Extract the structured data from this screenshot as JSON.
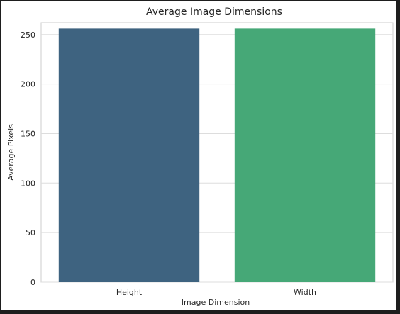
{
  "chart_data": {
    "type": "bar",
    "title": "Average Image Dimensions",
    "xlabel": "Image Dimension",
    "ylabel": "Average Pixels",
    "categories": [
      "Height",
      "Width"
    ],
    "values": [
      256,
      256
    ],
    "colors": [
      "#3e6380",
      "#46a877"
    ],
    "ylim": [
      0,
      262
    ],
    "yticks": [
      0,
      50,
      100,
      150,
      200,
      250
    ],
    "grid": true,
    "grid_axis": "y",
    "legend": "none"
  }
}
